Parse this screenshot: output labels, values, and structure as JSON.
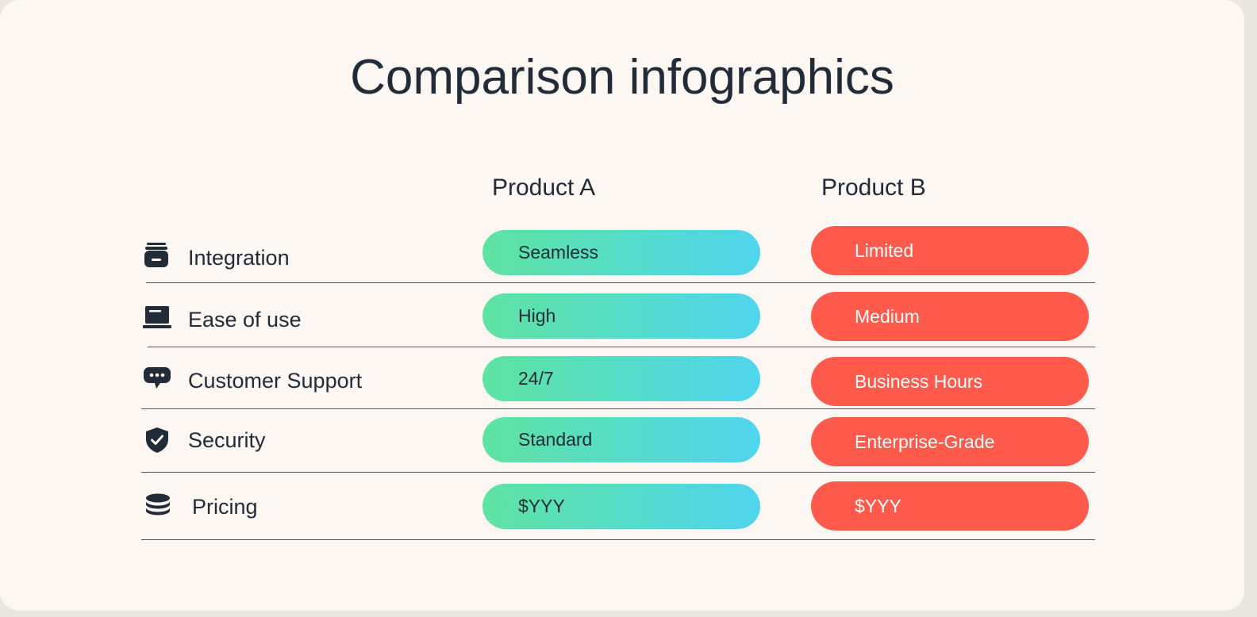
{
  "title": "Comparison infographics",
  "columns": {
    "a": "Product A",
    "b": "Product B"
  },
  "rows": [
    {
      "icon": "archive-icon",
      "label": "Integration",
      "a": "Seamless",
      "b": "Limited"
    },
    {
      "icon": "laptop-icon",
      "label": "Ease of use",
      "a": "High",
      "b": "Medium"
    },
    {
      "icon": "chat-bubble-icon",
      "label": "Customer Support",
      "a": "24/7",
      "b": "Business Hours"
    },
    {
      "icon": "shield-check-icon",
      "label": "Security",
      "a": "Standard",
      "b": "Enterprise-Grade"
    },
    {
      "icon": "coin-stack-icon",
      "label": "Pricing",
      "a": "$YYY",
      "b": "$YYY"
    }
  ],
  "colors": {
    "background": "#fcf7f3",
    "text": "#222b38",
    "product_a_gradient_start": "#5ee3a1",
    "product_a_gradient_end": "#4fd5ee",
    "product_b": "#ff5a4b",
    "divider": "#55595f"
  }
}
